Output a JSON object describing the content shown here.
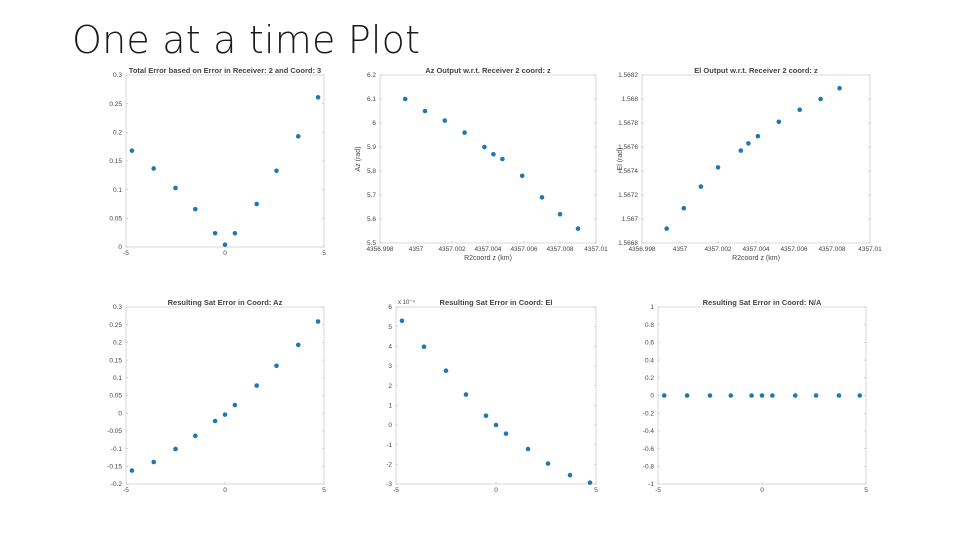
{
  "slide": {
    "title": "One at a time Plot"
  },
  "chart_data": [
    {
      "type": "scatter",
      "title": "Total Error based on Error in Receiver: 2 and Coord: 3",
      "xlabel": "",
      "ylabel": "",
      "xlim": [
        -5,
        5
      ],
      "ylim": [
        0,
        0.3
      ],
      "xticks": [
        -5,
        0,
        5
      ],
      "xtick_labels": [
        "-5",
        "0",
        "5"
      ],
      "yticks": [
        0,
        0.05,
        0.1,
        0.15,
        0.2,
        0.25,
        0.3
      ],
      "ytick_labels": [
        "0",
        "0.05",
        "0.1",
        "0.15",
        "0.2",
        "0.25",
        "0.3"
      ],
      "color": "#1f77b4",
      "points": [
        [
          -4.7,
          0.168
        ],
        [
          -3.6,
          0.137
        ],
        [
          -2.5,
          0.103
        ],
        [
          -1.5,
          0.066
        ],
        [
          -0.5,
          0.024
        ],
        [
          0,
          0.004
        ],
        [
          0.5,
          0.024
        ],
        [
          1.6,
          0.075
        ],
        [
          2.6,
          0.133
        ],
        [
          3.7,
          0.193
        ],
        [
          4.7,
          0.261
        ]
      ]
    },
    {
      "type": "scatter",
      "title": "Az Output w.r.t. Receiver 2 coord: z",
      "xlabel": "R2coord z (km)",
      "ylabel": "Az (rad)",
      "xlim": [
        4356.998,
        4357.01
      ],
      "ylim": [
        5.5,
        6.2
      ],
      "xticks": [
        4356.998,
        4357,
        4357.002,
        4357.004,
        4357.006,
        4357.008,
        4357.01
      ],
      "xtick_labels": [
        "4356.998",
        "4357",
        "4357.002",
        "4357.004",
        "4357.006",
        "4357.008",
        "4357.01"
      ],
      "yticks": [
        5.5,
        5.6,
        5.7,
        5.8,
        5.9,
        6.0,
        6.1,
        6.2
      ],
      "ytick_labels": [
        "5.5",
        "5.6",
        "5.7",
        "5.8",
        "5.9",
        "6",
        "6.1",
        "6.2"
      ],
      "color": "#1f77b4",
      "points": [
        [
          4356.9994,
          6.1
        ],
        [
          4357.0005,
          6.05
        ],
        [
          4357.0016,
          6.01
        ],
        [
          4357.0027,
          5.96
        ],
        [
          4357.0038,
          5.9
        ],
        [
          4357.0043,
          5.87
        ],
        [
          4357.0048,
          5.85
        ],
        [
          4357.0059,
          5.78
        ],
        [
          4357.007,
          5.69
        ],
        [
          4357.008,
          5.62
        ],
        [
          4357.009,
          5.56
        ]
      ]
    },
    {
      "type": "scatter",
      "title": "El Output w.r.t. Receiver 2 coord: z",
      "xlabel": "R2coord z (km)",
      "ylabel": "El (rad)",
      "xlim": [
        4356.998,
        4357.01
      ],
      "ylim": [
        1.5668,
        1.5682
      ],
      "xticks": [
        4356.998,
        4357,
        4357.002,
        4357.004,
        4357.006,
        4357.008,
        4357.01
      ],
      "xtick_labels": [
        "4356.998",
        "4357",
        "4357.002",
        "4357.004",
        "4357.006",
        "4357.008",
        "4357.01"
      ],
      "yticks": [
        1.5668,
        1.567,
        1.5672,
        1.5674,
        1.5676,
        1.5678,
        1.568,
        1.5682
      ],
      "ytick_labels": [
        "1.5668",
        "1.567",
        "1.5672",
        "1.5674",
        "1.5676",
        "1.5678",
        "1.568",
        "1.5682"
      ],
      "color": "#1f77b4",
      "points": [
        [
          4356.9993,
          1.56692
        ],
        [
          4357.0002,
          1.56709
        ],
        [
          4357.0011,
          1.56727
        ],
        [
          4357.002,
          1.56743
        ],
        [
          4357.0032,
          1.56757
        ],
        [
          4357.0036,
          1.56763
        ],
        [
          4357.0041,
          1.56769
        ],
        [
          4357.0052,
          1.56781
        ],
        [
          4357.0063,
          1.56791
        ],
        [
          4357.0074,
          1.568
        ],
        [
          4357.0084,
          1.56809
        ]
      ]
    },
    {
      "type": "scatter",
      "title": "Resulting Sat Error in Coord: Az",
      "xlabel": "",
      "ylabel": "",
      "xlim": [
        -5,
        5
      ],
      "ylim": [
        -0.2,
        0.3
      ],
      "xticks": [
        -5,
        0,
        5
      ],
      "xtick_labels": [
        "-5",
        "0",
        "5"
      ],
      "yticks": [
        -0.2,
        -0.15,
        -0.1,
        -0.05,
        0,
        0.05,
        0.1,
        0.15,
        0.2,
        0.25,
        0.3
      ],
      "ytick_labels": [
        "-0.2",
        "-0.15",
        "-0.1",
        "-0.05",
        "0",
        "0.05",
        "0.1",
        "0.15",
        "0.2",
        "0.25",
        "0.3"
      ],
      "color": "#1f77b4",
      "points": [
        [
          -4.7,
          -0.162
        ],
        [
          -3.6,
          -0.138
        ],
        [
          -2.5,
          -0.101
        ],
        [
          -1.5,
          -0.064
        ],
        [
          -0.5,
          -0.022
        ],
        [
          0,
          -0.004
        ],
        [
          0.5,
          0.023
        ],
        [
          1.6,
          0.078
        ],
        [
          2.6,
          0.134
        ],
        [
          3.7,
          0.193
        ],
        [
          4.7,
          0.259
        ]
      ]
    },
    {
      "type": "scatter",
      "title": "Resulting Sat Error in Coord: El",
      "xlabel": "",
      "ylabel": "",
      "xlim": [
        -5,
        5
      ],
      "ylim": [
        -3,
        6
      ],
      "y_multiplier": "x 10⁻⁴",
      "xticks": [
        -5,
        0,
        5
      ],
      "xtick_labels": [
        "-5",
        "0",
        "5"
      ],
      "yticks": [
        -3,
        -2,
        -1,
        0,
        1,
        2,
        3,
        4,
        5,
        6
      ],
      "ytick_labels": [
        "-3",
        "-2",
        "-1",
        "0",
        "1",
        "2",
        "3",
        "4",
        "5",
        "6"
      ],
      "color": "#1f77b4",
      "points": [
        [
          -4.7,
          5.3
        ],
        [
          -3.6,
          3.98
        ],
        [
          -2.5,
          2.76
        ],
        [
          -1.5,
          1.55
        ],
        [
          -0.5,
          0.47
        ],
        [
          0,
          0
        ],
        [
          0.5,
          -0.44
        ],
        [
          1.6,
          -1.22
        ],
        [
          2.6,
          -1.96
        ],
        [
          3.7,
          -2.55
        ],
        [
          4.7,
          -2.93
        ]
      ]
    },
    {
      "type": "scatter",
      "title": "Resulting Sat Error in Coord: N/A",
      "xlabel": "",
      "ylabel": "",
      "xlim": [
        -5,
        5
      ],
      "ylim": [
        -1,
        1
      ],
      "xticks": [
        -5,
        0,
        5
      ],
      "xtick_labels": [
        "-5",
        "0",
        "5"
      ],
      "yticks": [
        -1,
        -0.8,
        -0.6,
        -0.4,
        -0.2,
        0,
        0.2,
        0.4,
        0.6,
        0.8,
        1
      ],
      "ytick_labels": [
        "-1",
        "-0.8",
        "-0.6",
        "-0.4",
        "-0.2",
        "0",
        "0.2",
        "0.4",
        "0.6",
        "0.8",
        "1"
      ],
      "color": "#1f77b4",
      "points": [
        [
          -4.7,
          0
        ],
        [
          -3.6,
          0
        ],
        [
          -2.5,
          0
        ],
        [
          -1.5,
          0
        ],
        [
          -0.5,
          0
        ],
        [
          0,
          0
        ],
        [
          0.5,
          0
        ],
        [
          1.6,
          0
        ],
        [
          2.6,
          0
        ],
        [
          3.7,
          0
        ],
        [
          4.7,
          0
        ]
      ]
    }
  ]
}
